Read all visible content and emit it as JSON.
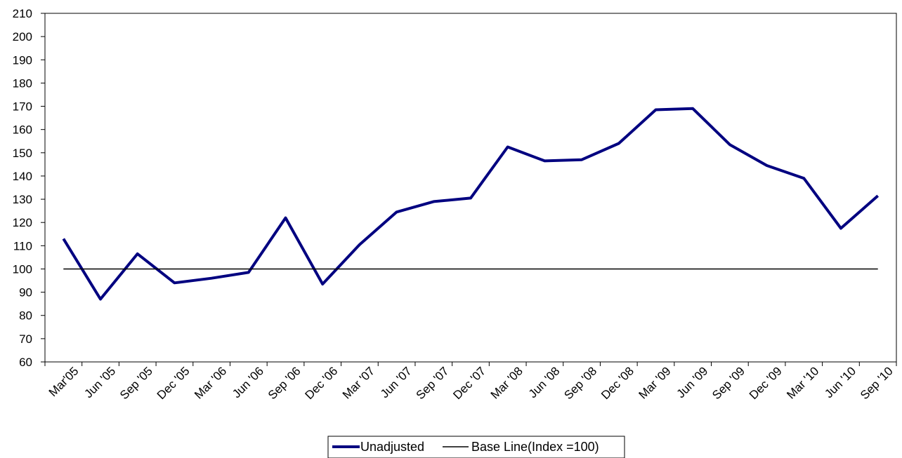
{
  "chart_data": {
    "type": "line",
    "title": "",
    "xlabel": "",
    "ylabel": "",
    "ylim": [
      60,
      210
    ],
    "yticks": [
      60,
      70,
      80,
      90,
      100,
      110,
      120,
      130,
      140,
      150,
      160,
      170,
      180,
      190,
      200,
      210
    ],
    "grid": false,
    "legend_position": "bottom-center",
    "categories": [
      "Mar'05",
      "Jun '05",
      "Sep '05",
      "Dec '05",
      "Mar '06",
      "Jun '06",
      "Sep '06",
      "Dec '06",
      "Mar '07",
      "Jun '07",
      "Sep '07",
      "Dec '07",
      "Mar '08",
      "Jun '08",
      "Sep '08",
      "Dec '08",
      "Mar '09",
      "Jun '09",
      "Sep '09",
      "Dec '09",
      "Mar '10",
      "Jun '10",
      "Sep '10"
    ],
    "series": [
      {
        "name": "Unadjusted",
        "color": "#000080",
        "values": [
          113,
          87,
          106.5,
          94,
          96,
          98.5,
          122,
          93.5,
          110.5,
          124.5,
          129,
          130.5,
          152.5,
          146.5,
          147,
          154,
          168.5,
          169,
          153.5,
          144.5,
          139,
          117.5,
          131.5
        ]
      },
      {
        "name": "Base Line(Index =100)",
        "color": "#000000",
        "values": [
          100,
          100,
          100,
          100,
          100,
          100,
          100,
          100,
          100,
          100,
          100,
          100,
          100,
          100,
          100,
          100,
          100,
          100,
          100,
          100,
          100,
          100,
          100
        ]
      }
    ]
  }
}
